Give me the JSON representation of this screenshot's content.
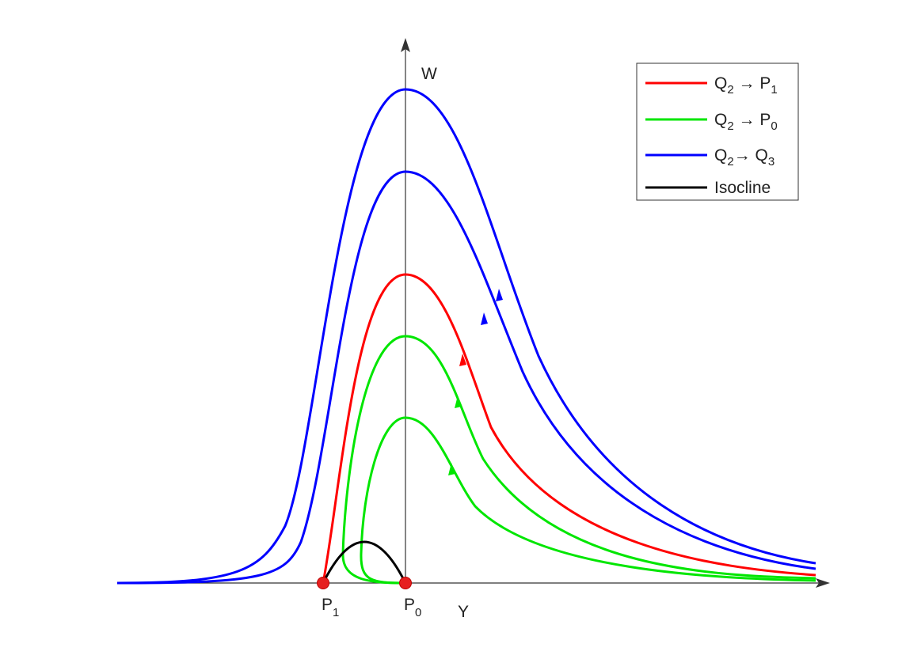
{
  "axes": {
    "y_label": "W",
    "x_label": "Y"
  },
  "points": [
    {
      "name": "P",
      "sub": "1"
    },
    {
      "name": "P",
      "sub": "0"
    }
  ],
  "legend": [
    {
      "parts": [
        {
          "text": "Q",
          "sub": "2"
        },
        {
          "text": " → P",
          "sub": "1"
        }
      ],
      "color": "#ff0000"
    },
    {
      "parts": [
        {
          "text": "Q",
          "sub": "2"
        },
        {
          "text": " → P",
          "sub": "0"
        }
      ],
      "color": "#00e600"
    },
    {
      "parts": [
        {
          "text": "Q",
          "sub": "2"
        },
        {
          "text": "→ Q",
          "sub": "3"
        }
      ],
      "color": "#0000ff"
    },
    {
      "parts": [
        {
          "text": "Isocline"
        }
      ],
      "color": "#000000"
    }
  ]
}
